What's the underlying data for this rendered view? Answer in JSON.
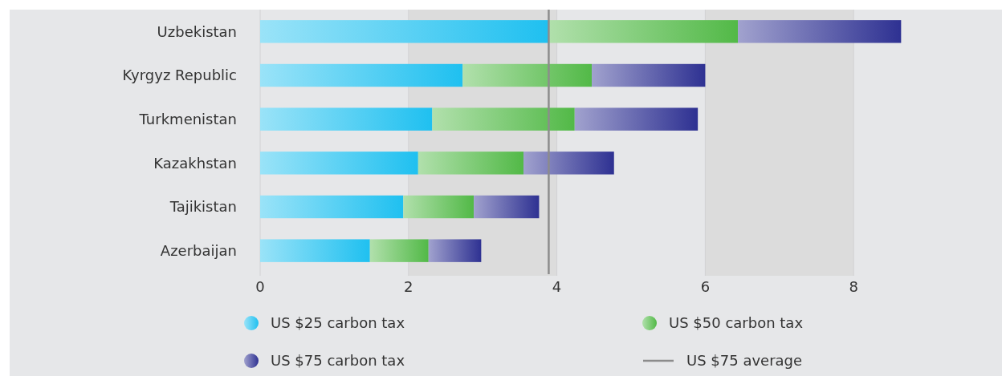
{
  "chart_data": {
    "type": "bar",
    "orientation": "horizontal",
    "stacked": true,
    "categories": [
      "Uzbekistan",
      "Kyrgyz Republic",
      "Turkmenistan",
      "Kazakhstan",
      "Tajikistan",
      "Azerbaijan"
    ],
    "series": [
      {
        "name": "US $25 carbon tax",
        "color": "#1fc0f0",
        "values": [
          3.89,
          2.73,
          2.32,
          2.13,
          1.93,
          1.48
        ]
      },
      {
        "name": "US $50 carbon tax",
        "color": "#52b947",
        "values": [
          2.55,
          1.74,
          1.92,
          1.42,
          0.95,
          0.79
        ]
      },
      {
        "name": "US $75 carbon tax",
        "color": "#2e3192",
        "values": [
          2.2,
          1.53,
          1.66,
          1.22,
          0.88,
          0.71
        ]
      }
    ],
    "xlim": [
      0,
      10
    ],
    "xticks": [
      0,
      2,
      4,
      6,
      8
    ],
    "grid": "x",
    "legend": "bottom",
    "ref_lines": [
      {
        "axis": "x",
        "value": 3.89,
        "label": "US $75 average",
        "color": "#8c8c8c"
      }
    ]
  }
}
